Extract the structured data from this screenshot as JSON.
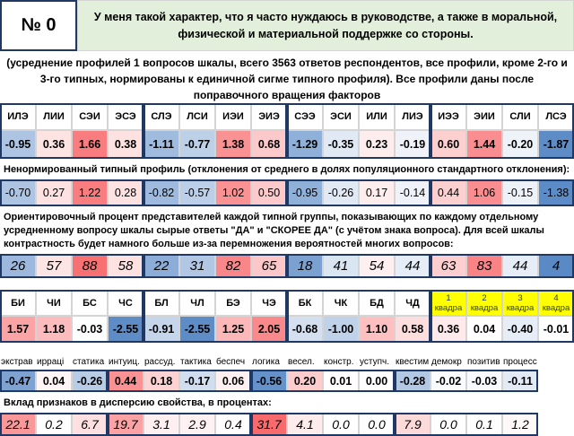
{
  "header": {
    "number": "№ 0",
    "statement": "У меня такой характер, что я часто нуждаюсь в руководстве, а также в моральной, физической и материальной поддержке со стороны."
  },
  "note": "(усреднение профилей 1 вопросов шкалы, всего 3563 ответов респондентов, все профили, кроме 2-го и 3-го типных, нормированы к единичной сигме типного профиля). Все профили даны после поправочного вращения факторов",
  "types": {
    "names": [
      "ИЛЭ",
      "ЛИИ",
      "СЭИ",
      "ЭСЭ",
      "СЛЭ",
      "ЛСИ",
      "ИЭИ",
      "ЭИЭ",
      "СЭЭ",
      "ЭСИ",
      "ИЛИ",
      "ЛИЭ",
      "ИЭЭ",
      "ЭИИ",
      "СЛИ",
      "ЛСЭ"
    ],
    "normalized": [
      "-0.95",
      "0.36",
      "1.66",
      "0.38",
      "-1.11",
      "-0.77",
      "1.38",
      "0.68",
      "-1.29",
      "-0.35",
      "0.23",
      "-0.19",
      "0.60",
      "1.44",
      "-0.20",
      "-1.87"
    ],
    "unnormalized_title": "Ненормированный типный профиль (отклонения от среднего  в долях популяционного стандартного отклонения):",
    "unnormalized": [
      "-0.70",
      "0.27",
      "1.22",
      "0.28",
      "-0.82",
      "-0.57",
      "1.02",
      "0.50",
      "-0.95",
      "-0.26",
      "0.17",
      "-0.14",
      "0.44",
      "1.06",
      "-0.15",
      "-1.38"
    ],
    "percent_title": "Ориентировочный процент представителей каждой типной группы, показывающих по каждому отдельному усредненному вопросу шкалы сырые ответы \"ДА\" и \"СКОРЕЕ ДА\" (с учётом знака вопроса). Для всей шкалы контрастность будет намного больше из-за перемножения вероятностей многих вопросов:",
    "percents": [
      "26",
      "57",
      "88",
      "58",
      "22",
      "31",
      "82",
      "65",
      "18",
      "41",
      "54",
      "44",
      "63",
      "83",
      "44",
      "4"
    ]
  },
  "functions": {
    "names": [
      "БИ",
      "ЧИ",
      "БС",
      "ЧС",
      "БЛ",
      "ЧЛ",
      "БЭ",
      "ЧЭ",
      "БК",
      "ЧК",
      "БД",
      "ЧД",
      "1 квадра",
      "2 квадра",
      "3 квадра",
      "4 квадра"
    ],
    "values": [
      "1.57",
      "1.18",
      "-0.03",
      "-2.55",
      "-0.91",
      "-2.55",
      "1.25",
      "2.05",
      "-0.68",
      "-1.00",
      "1.10",
      "0.58",
      "0.36",
      "0.04",
      "-0.40",
      "-0.01"
    ]
  },
  "traits": {
    "names": [
      "экстрав",
      "ирраці",
      "статика",
      "интуиц.",
      "рассуд.",
      "тактика",
      "беспеч",
      "логика",
      "весел.",
      "констр.",
      "уступч.",
      "квестим",
      "демокр",
      "позитив",
      "процесс"
    ],
    "values": [
      "-0.47",
      "0.04",
      "-0.26",
      "0.44",
      "0.18",
      "-0.17",
      "0.06",
      "-0.56",
      "0.20",
      "0.01",
      "0.00",
      "-0.28",
      "-0.02",
      "-0.03",
      "-0.11"
    ],
    "contribution_title": "Вклад признаков в дисперсию свойства, в процентах:",
    "contributions": [
      "22.1",
      "0.2",
      "6.7",
      "19.7",
      "3.1",
      "2.9",
      "0.4",
      "31.7",
      "4.1",
      "0.0",
      "0.0",
      "7.9",
      "0.0",
      "0.1",
      "1.2"
    ]
  }
}
